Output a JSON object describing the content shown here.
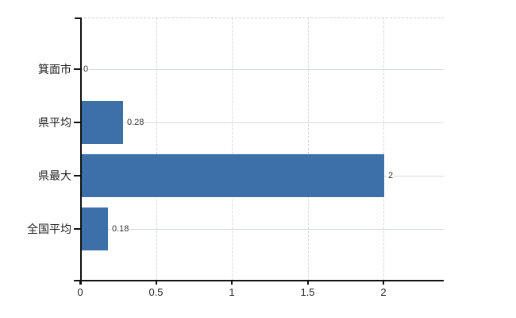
{
  "chart_data": {
    "type": "bar",
    "orientation": "horizontal",
    "title": "",
    "xlabel": "",
    "ylabel": "",
    "categories": [
      "箕面市",
      "県平均",
      "県最大",
      "全国平均"
    ],
    "values": [
      0,
      0.28,
      2,
      0.18
    ],
    "value_labels": [
      "0",
      "0.28",
      "2",
      "0.18"
    ],
    "x_ticks": [
      0,
      0.5,
      1,
      1.5,
      2
    ],
    "x_tick_labels": [
      "0",
      "0.5",
      "1",
      "1.5",
      "2"
    ],
    "xlim": [
      0,
      2.4
    ],
    "grid": true,
    "legend": "none",
    "colors": {
      "bar": "#3d6fa8",
      "axis": "#111111",
      "grid_horizontal": "#d6ddd6",
      "grid_vertical": "#d3d8d3",
      "plot_top_border": "#d2ced2",
      "text": "#222222",
      "value_text": "#333333",
      "background": "#ffffff"
    }
  }
}
